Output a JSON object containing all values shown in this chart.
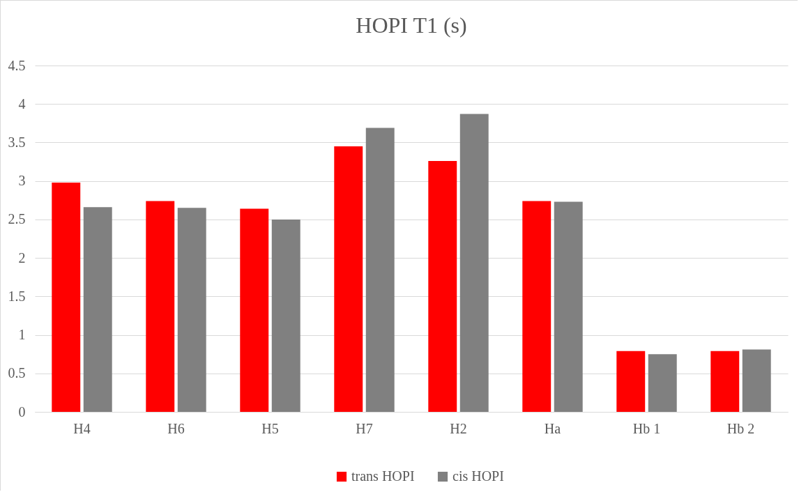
{
  "chart_data": {
    "type": "bar",
    "title": "HOPI T1 (s)",
    "categories": [
      "H4",
      "H6",
      "H5",
      "H7",
      "H2",
      "Ha",
      "Hb 1",
      "Hb 2"
    ],
    "series": [
      {
        "name": "trans HOPI",
        "color": "#ff0000",
        "values": [
          2.98,
          2.74,
          2.64,
          3.45,
          3.26,
          2.74,
          0.79,
          0.79
        ]
      },
      {
        "name": "cis HOPI",
        "color": "#808080",
        "values": [
          2.66,
          2.65,
          2.5,
          3.69,
          3.87,
          2.73,
          0.75,
          0.81
        ]
      }
    ],
    "ylim": [
      0,
      4.5
    ],
    "yticks": [
      0,
      0.5,
      1,
      1.5,
      2,
      2.5,
      3,
      3.5,
      4,
      4.5
    ],
    "grid": "y",
    "legend": "bottom"
  }
}
